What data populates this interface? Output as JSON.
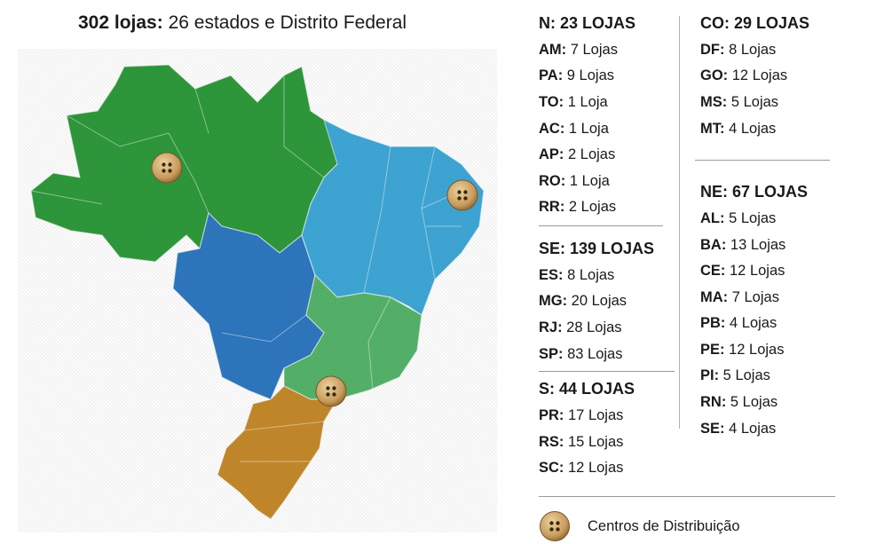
{
  "title": {
    "bold": "302 lojas:",
    "rest": " 26 estados e Distrito Federal"
  },
  "colors": {
    "north": "#2e9a3c",
    "center_west": "#2f78c0",
    "northeast": "#3fa8d8",
    "southeast": "#55b46a",
    "south": "#c58a2a",
    "button": "#caa56a"
  },
  "regions": {
    "N": {
      "heading": "N: 23 LOJAS",
      "rows": [
        {
          "uf": "AM:",
          "n": " 7 Lojas"
        },
        {
          "uf": "PA:",
          "n": " 9 Lojas"
        },
        {
          "uf": "TO:",
          "n": " 1 Loja"
        },
        {
          "uf": "AC:",
          "n": " 1 Loja"
        },
        {
          "uf": "AP:",
          "n": " 2 Lojas"
        },
        {
          "uf": "RO:",
          "n": " 1 Loja"
        },
        {
          "uf": "RR:",
          "n": " 2 Lojas"
        }
      ]
    },
    "SE": {
      "heading": "SE: 139 LOJAS",
      "rows": [
        {
          "uf": "ES:",
          "n": " 8 Lojas"
        },
        {
          "uf": "MG:",
          "n": " 20 Lojas"
        },
        {
          "uf": "RJ:",
          "n": " 28 Lojas"
        },
        {
          "uf": "SP:",
          "n": " 83 Lojas"
        }
      ]
    },
    "S": {
      "heading": "S: 44 LOJAS",
      "rows": [
        {
          "uf": "PR:",
          "n": " 17 Lojas"
        },
        {
          "uf": "RS:",
          "n": " 15 Lojas"
        },
        {
          "uf": "SC:",
          "n": " 12 Lojas"
        }
      ]
    },
    "CO": {
      "heading": "CO: 29 LOJAS",
      "rows": [
        {
          "uf": "DF:",
          "n": " 8 Lojas"
        },
        {
          "uf": "GO:",
          "n": " 12 Lojas"
        },
        {
          "uf": "MS:",
          "n": " 5 Lojas"
        },
        {
          "uf": "MT:",
          "n": " 4 Lojas"
        }
      ]
    },
    "NE": {
      "heading": "NE: 67 LOJAS",
      "rows": [
        {
          "uf": "AL:",
          "n": " 5 Lojas"
        },
        {
          "uf": "BA:",
          "n": " 13 Lojas"
        },
        {
          "uf": "CE:",
          "n": " 12 Lojas"
        },
        {
          "uf": "MA:",
          "n": " 7 Lojas"
        },
        {
          "uf": "PB:",
          "n": " 4 Lojas"
        },
        {
          "uf": "PE:",
          "n": " 12 Lojas"
        },
        {
          "uf": "PI:",
          "n": " 5 Lojas"
        },
        {
          "uf": "RN:",
          "n": " 5 Lojas"
        },
        {
          "uf": "SE:",
          "n": " 4 Lojas"
        }
      ]
    }
  },
  "legend": {
    "icon": "button-icon",
    "label": "Centros de Distribuição"
  }
}
